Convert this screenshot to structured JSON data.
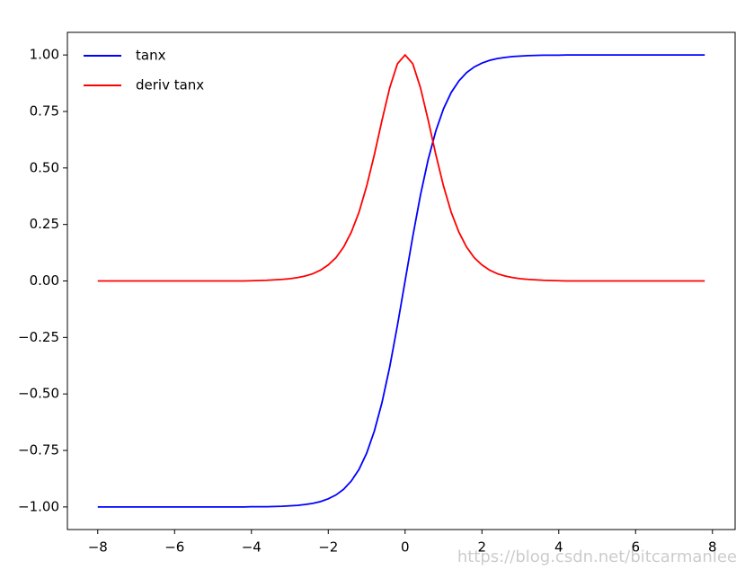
{
  "chart_data": {
    "type": "line",
    "x": [
      -8.0,
      -7.8,
      -7.6,
      -7.4,
      -7.2,
      -7.0,
      -6.8,
      -6.6,
      -6.4,
      -6.2,
      -6.0,
      -5.8,
      -5.6,
      -5.4,
      -5.2,
      -5.0,
      -4.8,
      -4.6,
      -4.4,
      -4.2,
      -4.0,
      -3.8,
      -3.6,
      -3.4,
      -3.2,
      -3.0,
      -2.8,
      -2.6,
      -2.4,
      -2.2,
      -2.0,
      -1.8,
      -1.6,
      -1.4,
      -1.2,
      -1.0,
      -0.8,
      -0.6,
      -0.4,
      -0.2,
      0.0,
      0.2,
      0.4,
      0.6,
      0.8,
      1.0,
      1.2,
      1.4,
      1.6,
      1.8,
      2.0,
      2.2,
      2.4,
      2.6,
      2.8,
      3.0,
      3.2,
      3.4,
      3.6,
      3.8,
      4.0,
      4.2,
      4.4,
      4.6,
      4.8,
      5.0,
      5.2,
      5.4,
      5.6,
      5.8,
      6.0,
      6.2,
      6.4,
      6.6,
      6.8,
      7.0,
      7.2,
      7.4,
      7.6,
      7.8
    ],
    "series": [
      {
        "name": "tanx",
        "color": "#0000ff",
        "values": [
          -1,
          -1,
          -1,
          -1,
          -1,
          -1,
          -1,
          -1,
          -1,
          -1,
          -1,
          -1,
          -1,
          -1,
          -1,
          -1,
          -1,
          -1,
          -1,
          -1,
          -0.999,
          -0.999,
          -0.999,
          -0.998,
          -0.997,
          -0.995,
          -0.993,
          -0.989,
          -0.984,
          -0.976,
          -0.964,
          -0.947,
          -0.922,
          -0.885,
          -0.834,
          -0.762,
          -0.664,
          -0.537,
          -0.38,
          -0.197,
          0,
          0.197,
          0.38,
          0.537,
          0.664,
          0.762,
          0.834,
          0.885,
          0.922,
          0.947,
          0.964,
          0.976,
          0.984,
          0.989,
          0.993,
          0.995,
          0.997,
          0.998,
          0.999,
          0.999,
          0.999,
          1,
          1,
          1,
          1,
          1,
          1,
          1,
          1,
          1,
          1,
          1,
          1,
          1,
          1,
          1,
          1,
          1,
          1,
          1
        ]
      },
      {
        "name": "deriv tanx",
        "color": "#ff0000",
        "values": [
          0,
          0,
          0,
          0,
          0,
          0,
          0,
          0,
          0,
          0,
          0,
          0,
          0,
          0,
          0,
          0,
          0,
          0,
          0,
          0,
          0.001,
          0.002,
          0.003,
          0.005,
          0.007,
          0.01,
          0.015,
          0.022,
          0.032,
          0.048,
          0.071,
          0.103,
          0.15,
          0.216,
          0.304,
          0.42,
          0.559,
          0.712,
          0.855,
          0.961,
          1,
          0.961,
          0.855,
          0.712,
          0.559,
          0.42,
          0.304,
          0.216,
          0.15,
          0.103,
          0.071,
          0.048,
          0.032,
          0.022,
          0.015,
          0.01,
          0.007,
          0.005,
          0.003,
          0.002,
          0.001,
          0,
          0,
          0,
          0,
          0,
          0,
          0,
          0,
          0,
          0,
          0,
          0,
          0,
          0,
          0,
          0,
          0,
          0,
          0
        ]
      }
    ],
    "xlim": [
      -8.79,
      8.59
    ],
    "ylim": [
      -1.1,
      1.1
    ],
    "xticks": [
      {
        "value": -8,
        "label": "−8"
      },
      {
        "value": -6,
        "label": "−6"
      },
      {
        "value": -4,
        "label": "−4"
      },
      {
        "value": -2,
        "label": "−2"
      },
      0,
      2,
      4,
      6,
      8
    ],
    "yticks": [
      {
        "value": -1,
        "label": "−1.00"
      },
      {
        "value": -0.75,
        "label": "−0.75"
      },
      {
        "value": -0.5,
        "label": "−0.50"
      },
      {
        "value": -0.25,
        "label": "−0.25"
      },
      {
        "value": 0,
        "label": "0.00"
      },
      {
        "value": 0.25,
        "label": "0.25"
      },
      {
        "value": 0.5,
        "label": "0.50"
      },
      {
        "value": 0.75,
        "label": "0.75"
      },
      {
        "value": 1,
        "label": "1.00"
      }
    ],
    "legend": "upper left",
    "watermark": "https://blog.csdn.net/bitcarmanlee"
  }
}
